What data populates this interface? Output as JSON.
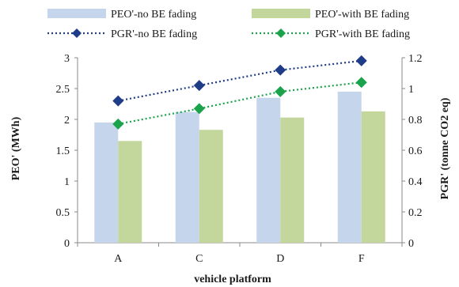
{
  "chart_data": {
    "type": "bar",
    "categories": [
      "A",
      "C",
      "D",
      "F"
    ],
    "xlabel": "vehicle platform",
    "ylabel_left": "PEO' (MWh)",
    "ylabel_right": "PGR' (tonne CO2 eq)",
    "ylim_left": [
      0,
      3
    ],
    "ylim_right": [
      0,
      1.2
    ],
    "yticks_left": [
      "0",
      "0.5",
      "1",
      "1.5",
      "2",
      "2.5",
      "3"
    ],
    "yticks_right": [
      "0",
      "0.2",
      "0.4",
      "0.6",
      "0.8",
      "1",
      "1.2"
    ],
    "grid": false,
    "legend_position": "top",
    "bar_series": [
      {
        "name": "PEO'-no BE fading",
        "color": "#c5d5ec",
        "axis": "left",
        "values": [
          1.95,
          2.12,
          2.35,
          2.45
        ]
      },
      {
        "name": "PEO'-with BE fading",
        "color": "#c3d69b",
        "axis": "left",
        "values": [
          1.65,
          1.83,
          2.03,
          2.13
        ]
      }
    ],
    "line_series": [
      {
        "name": "PGR'-no BE fading",
        "color": "#1f3c88",
        "marker": "diamond",
        "axis": "right",
        "values": [
          0.92,
          1.02,
          1.12,
          1.18
        ]
      },
      {
        "name": "PGR'-with BE fading",
        "color": "#1aa34a",
        "marker": "diamond",
        "axis": "right",
        "values": [
          0.77,
          0.87,
          0.98,
          1.04
        ]
      }
    ]
  }
}
